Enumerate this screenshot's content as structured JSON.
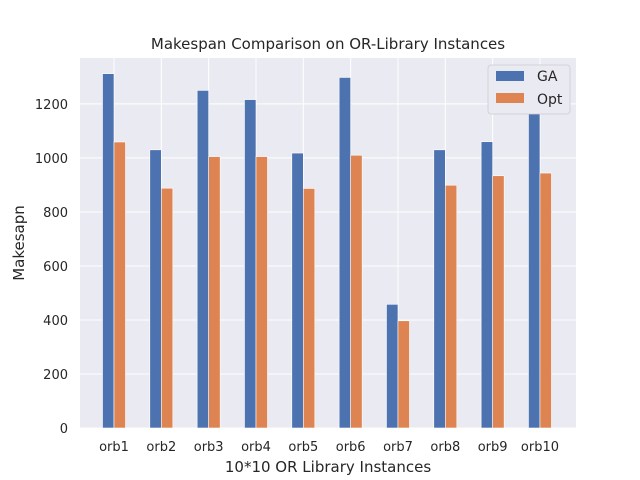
{
  "chart_data": {
    "type": "bar",
    "title": "Makespan Comparison on OR-Library Instances",
    "xlabel": "10*10 OR Library Instances",
    "ylabel": "Makesapn",
    "categories": [
      "orb1",
      "orb2",
      "orb3",
      "orb4",
      "orb5",
      "orb6",
      "orb7",
      "orb8",
      "orb9",
      "orb10"
    ],
    "series": [
      {
        "name": "GA",
        "color": "#4c72b0",
        "values": [
          1312,
          1030,
          1250,
          1216,
          1018,
          1298,
          458,
          1030,
          1060,
          1180
        ]
      },
      {
        "name": "Opt",
        "color": "#dd8452",
        "values": [
          1059,
          888,
          1005,
          1005,
          887,
          1010,
          397,
          899,
          934,
          944
        ]
      }
    ],
    "ylim": [
      0,
      1370
    ],
    "yticks": [
      0,
      200,
      400,
      600,
      800,
      1000,
      1200
    ],
    "grid": true,
    "legend_position": "top-right",
    "background_color": "#eaeaf2",
    "grid_color": "#ffffff"
  }
}
